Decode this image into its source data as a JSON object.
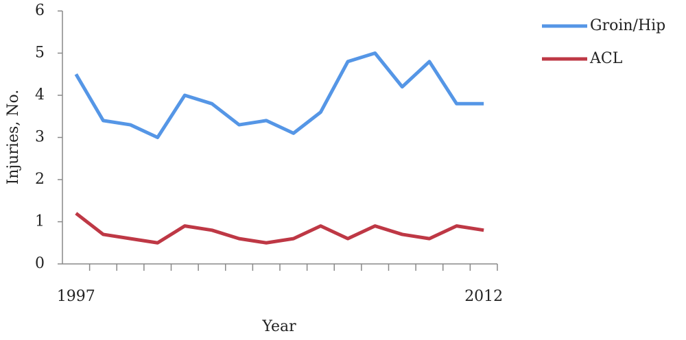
{
  "chart_data": {
    "type": "line",
    "x_label": "Year",
    "y_label": "Injuries, No.",
    "categories": [
      "1997",
      null,
      null,
      null,
      null,
      null,
      null,
      null,
      null,
      null,
      null,
      null,
      null,
      null,
      null,
      "2012"
    ],
    "series": [
      {
        "name": "Groin/Hip",
        "color": "#5596e6",
        "values": [
          4.5,
          3.4,
          3.3,
          3.0,
          4.0,
          3.8,
          3.3,
          3.4,
          3.1,
          3.6,
          4.8,
          5.0,
          4.2,
          4.8,
          3.8,
          3.8
        ]
      },
      {
        "name": "ACL",
        "color": "#be3845",
        "values": [
          1.2,
          0.7,
          0.6,
          0.5,
          0.9,
          0.8,
          0.6,
          0.5,
          0.6,
          0.9,
          0.6,
          0.9,
          0.7,
          0.6,
          0.9,
          0.8
        ]
      }
    ],
    "ylim": [
      0,
      6
    ],
    "yticks": [
      0,
      1,
      2,
      3,
      4,
      5,
      6
    ],
    "grid": false,
    "legend": "right"
  }
}
